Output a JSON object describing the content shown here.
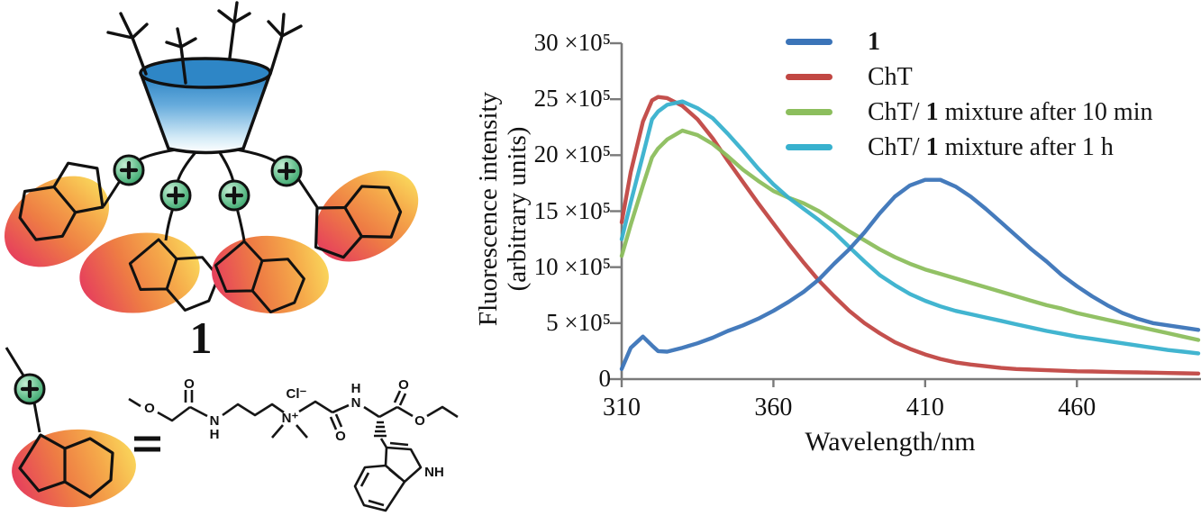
{
  "left_panel": {
    "compound_number": "1",
    "equals": "=",
    "icons": {
      "plus_charge": "+"
    },
    "atom_labels": {
      "o1": "O",
      "o2": "O",
      "n1": "N",
      "h1": "H",
      "cl": "Cl⁻",
      "n2": "N⁺",
      "o3": "O",
      "h2": "H",
      "n3": "N",
      "o4": "O",
      "o5": "O",
      "nh": "NH"
    }
  },
  "chart": {
    "ylabel_line1": "Fluorescence intensity",
    "ylabel_line2": "(arbitrary units)",
    "xlabel": "Wavelength/nm",
    "x_tick_labels": [
      "310",
      "360",
      "410",
      "460"
    ],
    "y_tick_labels": [
      "0",
      "5 ×10⁵",
      "10 ×10⁵",
      "15 ×10⁵",
      "20 ×10⁵",
      "25 ×10⁵",
      "30 ×10⁵"
    ]
  },
  "chart_data": {
    "type": "line",
    "title": "",
    "xlabel": "Wavelength/nm",
    "ylabel": "Fluorescence intensity (arbitrary units)",
    "xlim": [
      310,
      500
    ],
    "ylim": [
      0,
      3000000
    ],
    "y_unit_multiplier": 100000,
    "x_tick_values": [
      310,
      360,
      410,
      460
    ],
    "y_tick_values": [
      0,
      5,
      10,
      15,
      20,
      25,
      30
    ],
    "grid": false,
    "legend_position": "top-right",
    "x": [
      310,
      313,
      317,
      320,
      322,
      325,
      330,
      335,
      340,
      345,
      350,
      355,
      360,
      365,
      370,
      375,
      380,
      385,
      390,
      395,
      400,
      405,
      410,
      415,
      420,
      425,
      430,
      435,
      440,
      445,
      450,
      455,
      460,
      465,
      470,
      475,
      480,
      485,
      490,
      495,
      500
    ],
    "series": [
      {
        "name": "1",
        "color": "#3b74b8",
        "values": [
          0.9,
          2.8,
          3.8,
          3.0,
          2.5,
          2.45,
          2.8,
          3.2,
          3.7,
          4.3,
          4.8,
          5.4,
          6.1,
          6.9,
          7.8,
          8.9,
          10.3,
          11.6,
          13.1,
          14.8,
          16.3,
          17.3,
          17.8,
          17.8,
          17.2,
          16.3,
          15.2,
          14.0,
          12.8,
          11.6,
          10.5,
          9.3,
          8.3,
          7.4,
          6.6,
          5.9,
          5.4,
          5.0,
          4.8,
          4.6,
          4.4
        ]
      },
      {
        "name": "ChT",
        "color": "#c14743",
        "values": [
          14.0,
          18.5,
          23.0,
          24.9,
          25.2,
          25.1,
          24.4,
          23.2,
          21.5,
          19.5,
          17.6,
          15.7,
          13.9,
          12.1,
          10.4,
          8.8,
          7.4,
          6.1,
          5.0,
          4.1,
          3.3,
          2.7,
          2.2,
          1.8,
          1.5,
          1.3,
          1.15,
          1.0,
          0.9,
          0.85,
          0.8,
          0.75,
          0.7,
          0.68,
          0.65,
          0.62,
          0.6,
          0.58,
          0.55,
          0.52,
          0.5
        ]
      },
      {
        "name": "ChT/ 1 mixture after 10 min",
        "color": "#8cbe5d",
        "values": [
          11.0,
          13.8,
          17.3,
          19.8,
          20.6,
          21.4,
          22.2,
          21.8,
          21.0,
          19.9,
          18.7,
          17.7,
          16.8,
          16.2,
          15.7,
          15.0,
          14.1,
          13.2,
          12.4,
          11.6,
          10.9,
          10.3,
          9.8,
          9.4,
          9.0,
          8.6,
          8.2,
          7.8,
          7.4,
          7.0,
          6.6,
          6.3,
          5.9,
          5.6,
          5.3,
          5.0,
          4.7,
          4.4,
          4.1,
          3.8,
          3.5
        ]
      },
      {
        "name": "ChT/ 1 mixture after 1 h",
        "color": "#38b1ce",
        "values": [
          12.5,
          15.8,
          20.0,
          23.2,
          23.9,
          24.5,
          24.8,
          24.2,
          23.3,
          21.9,
          20.4,
          18.8,
          17.4,
          16.2,
          15.2,
          14.2,
          13.1,
          11.8,
          10.5,
          9.3,
          8.4,
          7.6,
          7.0,
          6.5,
          6.1,
          5.8,
          5.5,
          5.2,
          4.9,
          4.6,
          4.3,
          4.05,
          3.8,
          3.6,
          3.4,
          3.2,
          3.0,
          2.8,
          2.6,
          2.45,
          2.3
        ]
      }
    ],
    "legend": [
      {
        "pre": "",
        "bold": "1",
        "post": ""
      },
      {
        "pre": "ChT",
        "bold": "",
        "post": ""
      },
      {
        "pre": "ChT/ ",
        "bold": "1",
        "post": " mixture after 10 min"
      },
      {
        "pre": "ChT/ ",
        "bold": "1",
        "post": " mixture after 1 h"
      }
    ]
  },
  "colors": {
    "axis": "#7a7a7a",
    "cup_blue": "#2a80c3",
    "charge_green": "#3aa86e",
    "blob_red": "#e6405c",
    "blob_yellow": "#fad75b"
  }
}
